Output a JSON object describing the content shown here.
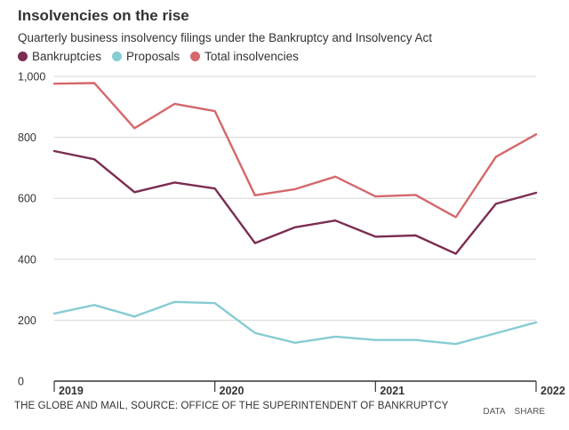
{
  "title": "Insolvencies on the rise",
  "subtitle": "Quarterly business insolvency filings under the Bankruptcy and Insolvency Act",
  "source": "THE GLOBE AND MAIL, SOURCE: OFFICE OF THE SUPERINTENDENT OF BANKRUPTCY",
  "actions": {
    "data": "DATA",
    "share": "SHARE"
  },
  "chart_data": {
    "type": "line",
    "title": "Insolvencies on the rise",
    "xlabel": "",
    "ylabel": "",
    "ylim": [
      0,
      1000
    ],
    "yticks": [
      0,
      200,
      400,
      600,
      800,
      1000
    ],
    "ytick_labels": [
      "0",
      "200",
      "400",
      "600",
      "800",
      "1,000"
    ],
    "x": [
      "2019 Q1",
      "2019 Q2",
      "2019 Q3",
      "2019 Q4",
      "2020 Q1",
      "2020 Q2",
      "2020 Q3",
      "2020 Q4",
      "2021 Q1",
      "2021 Q2",
      "2021 Q3",
      "2021 Q4",
      "2022 Q1"
    ],
    "year_ticks": [
      {
        "label": "2019",
        "index": 0
      },
      {
        "label": "2020",
        "index": 4
      },
      {
        "label": "2021",
        "index": 8
      },
      {
        "label": "2022",
        "index": 12
      }
    ],
    "grid": true,
    "legend_position": "top-left",
    "series": [
      {
        "name": "Bankruptcies",
        "color": "#7b2d52",
        "values": [
          755,
          728,
          620,
          652,
          632,
          453,
          505,
          527,
          474,
          478,
          418,
          582,
          618
        ]
      },
      {
        "name": "Proposals",
        "color": "#86ccd3",
        "values": [
          222,
          250,
          212,
          260,
          256,
          158,
          126,
          146,
          135,
          135,
          122,
          157,
          193
        ]
      },
      {
        "name": "Total insolvencies",
        "color": "#d4686b",
        "values": [
          976,
          978,
          830,
          910,
          886,
          610,
          630,
          671,
          606,
          611,
          538,
          736,
          810
        ]
      }
    ]
  }
}
